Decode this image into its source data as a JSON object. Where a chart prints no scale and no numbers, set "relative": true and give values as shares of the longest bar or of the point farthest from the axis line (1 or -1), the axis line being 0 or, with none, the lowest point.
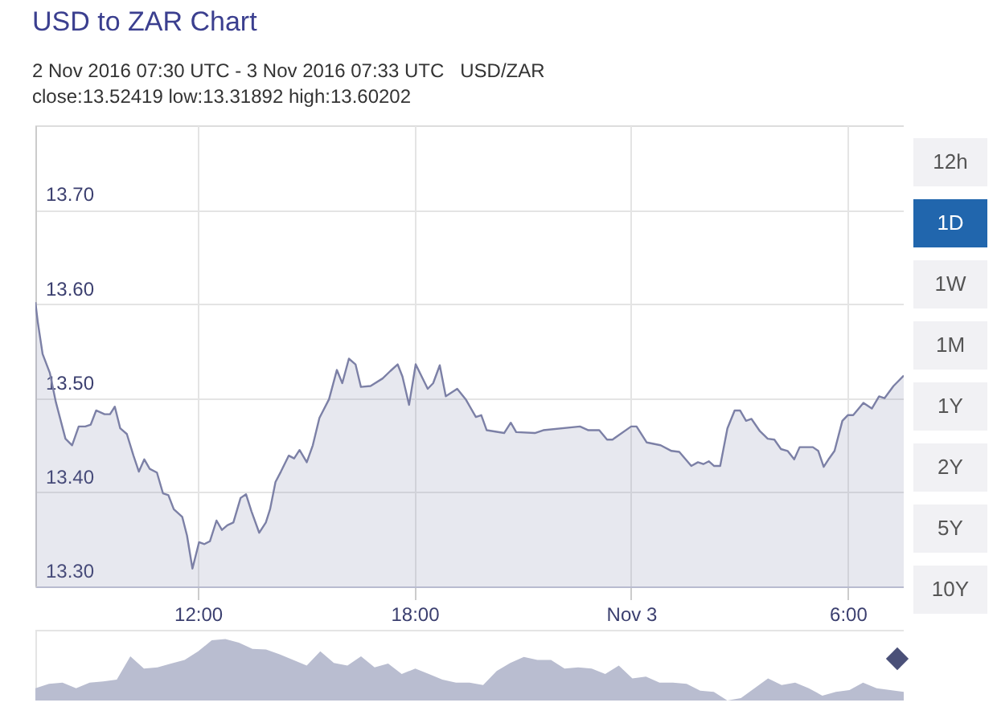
{
  "chart_data": [
    {
      "type": "area",
      "title": "USD to ZAR Chart",
      "subtitle": "2 Nov 2016 07:30 UTC - 3 Nov 2016 07:33 UTC   USD/ZAR close:13.52419 low:13.31892 high:13.60202",
      "annotations": [
        "12h",
        "1D",
        "1W",
        "1M",
        "1Y",
        "2Y",
        "5Y",
        "10Y"
      ],
      "x": [
        "2016-11-02T07:30",
        "2016-11-02T07:34",
        "2016-11-02T07:42",
        "2016-11-02T07:54",
        "2016-11-02T08:04",
        "2016-11-02T08:20",
        "2016-11-02T08:31",
        "2016-11-02T08:42",
        "2016-11-02T08:53",
        "2016-11-02T09:02",
        "2016-11-02T09:11",
        "2016-11-02T09:25",
        "2016-11-02T09:34",
        "2016-11-02T09:42",
        "2016-11-02T09:51",
        "2016-11-02T10:02",
        "2016-11-02T10:13",
        "2016-11-02T10:22",
        "2016-11-02T10:31",
        "2016-11-02T10:40",
        "2016-11-02T10:52",
        "2016-11-02T11:02",
        "2016-11-02T11:11",
        "2016-11-02T11:20",
        "2016-11-02T11:34",
        "2016-11-02T11:42",
        "2016-11-02T11:51",
        "2016-11-02T12:02",
        "2016-11-02T12:11",
        "2016-11-02T12:20",
        "2016-11-02T12:31",
        "2016-11-02T12:40",
        "2016-11-02T12:49",
        "2016-11-02T12:59",
        "2016-11-02T13:11",
        "2016-11-02T13:20",
        "2016-11-02T13:29",
        "2016-11-02T13:42",
        "2016-11-02T13:53",
        "2016-11-02T14:00",
        "2016-11-02T14:09",
        "2016-11-02T14:18",
        "2016-11-02T14:31",
        "2016-11-02T14:40",
        "2016-11-02T14:49",
        "2016-11-02T15:01",
        "2016-11-02T15:11",
        "2016-11-02T15:22",
        "2016-11-02T15:38",
        "2016-11-02T15:51",
        "2016-11-02T16:00",
        "2016-11-02T16:11",
        "2016-11-02T16:22",
        "2016-11-02T16:31",
        "2016-11-02T16:47",
        "2016-11-02T17:07",
        "2016-11-02T17:20",
        "2016-11-02T17:32",
        "2016-11-02T17:40",
        "2016-11-02T17:51",
        "2016-11-02T18:02",
        "2016-11-02T18:22",
        "2016-11-02T18:31",
        "2016-11-02T18:42",
        "2016-11-02T18:52",
        "2016-11-02T19:11",
        "2016-11-02T19:25",
        "2016-11-02T19:42",
        "2016-11-02T19:51",
        "2016-11-02T20:00",
        "2016-11-02T20:29",
        "2016-11-02T20:40",
        "2016-11-02T20:49",
        "2016-11-02T21:20",
        "2016-11-02T21:34",
        "2016-11-02T22:35",
        "2016-11-02T22:49",
        "2016-11-02T23:07",
        "2016-11-02T23:20",
        "2016-11-02T23:29",
        "2016-11-03T00:00",
        "2016-11-03T00:09",
        "2016-11-03T00:26",
        "2016-11-03T00:49",
        "2016-11-03T01:07",
        "2016-11-03T01:20",
        "2016-11-03T01:40",
        "2016-11-03T01:51",
        "2016-11-03T02:00",
        "2016-11-03T02:09",
        "2016-11-03T02:18",
        "2016-11-03T02:28",
        "2016-11-03T02:40",
        "2016-11-03T02:52",
        "2016-11-03T03:01",
        "2016-11-03T03:11",
        "2016-11-03T03:20",
        "2016-11-03T03:34",
        "2016-11-03T03:47",
        "2016-11-03T03:58",
        "2016-11-03T04:09",
        "2016-11-03T04:20",
        "2016-11-03T04:31",
        "2016-11-03T04:40",
        "2016-11-03T05:02",
        "2016-11-03T05:11",
        "2016-11-03T05:20",
        "2016-11-03T05:29",
        "2016-11-03T05:38",
        "2016-11-03T05:51",
        "2016-11-03T06:00",
        "2016-11-03T06:09",
        "2016-11-03T06:26",
        "2016-11-03T06:40",
        "2016-11-03T06:52",
        "2016-11-03T07:01",
        "2016-11-03T07:16",
        "2016-11-03T07:33"
      ],
      "values": [
        13.602,
        13.581,
        13.547,
        13.527,
        13.496,
        13.457,
        13.45,
        13.47,
        13.47,
        13.472,
        13.487,
        13.483,
        13.483,
        13.491,
        13.468,
        13.462,
        13.439,
        13.422,
        13.435,
        13.425,
        13.421,
        13.399,
        13.397,
        13.382,
        13.374,
        13.354,
        13.319,
        13.347,
        13.345,
        13.348,
        13.37,
        13.36,
        13.365,
        13.368,
        13.394,
        13.398,
        13.38,
        13.357,
        13.368,
        13.382,
        13.411,
        13.422,
        13.439,
        13.436,
        13.445,
        13.432,
        13.45,
        13.479,
        13.499,
        13.53,
        13.516,
        13.542,
        13.536,
        13.512,
        13.513,
        13.521,
        13.529,
        13.536,
        13.523,
        13.493,
        13.536,
        13.51,
        13.516,
        13.535,
        13.502,
        13.51,
        13.499,
        13.48,
        13.482,
        13.466,
        13.463,
        13.474,
        13.464,
        13.463,
        13.466,
        13.47,
        13.466,
        13.466,
        13.456,
        13.456,
        13.47,
        13.47,
        13.453,
        13.45,
        13.444,
        13.443,
        13.428,
        13.432,
        13.43,
        13.433,
        13.428,
        13.428,
        13.468,
        13.487,
        13.487,
        13.476,
        13.478,
        13.465,
        13.457,
        13.456,
        13.446,
        13.444,
        13.435,
        13.448,
        13.448,
        13.444,
        13.427,
        13.436,
        13.444,
        13.476,
        13.482,
        13.482,
        13.495,
        13.489,
        13.502,
        13.5,
        13.513,
        13.524
      ],
      "color": "#7c80a6",
      "xlim": [
        "2016-11-02T07:30",
        "2016-11-03T07:33"
      ],
      "xticks": [
        {
          "value": "2016-11-02T12:00",
          "label": "12:00"
        },
        {
          "value": "2016-11-02T18:00",
          "label": "18:00"
        },
        {
          "value": "2016-11-03T00:00",
          "label": "Nov 3"
        },
        {
          "value": "2016-11-03T06:00",
          "label": "6:00"
        }
      ],
      "ylim": [
        13.3,
        13.79
      ],
      "yticks": [
        {
          "value": 13.3,
          "label": "13.30"
        },
        {
          "value": 13.4,
          "label": "13.40"
        },
        {
          "value": 13.5,
          "label": "13.50"
        },
        {
          "value": 13.6,
          "label": "13.60"
        },
        {
          "value": 13.7,
          "label": "13.70"
        }
      ],
      "grid": true
    },
    {
      "type": "area",
      "relative": true,
      "color": "#b9bdd0",
      "categories": [
        null,
        null,
        null,
        null,
        null,
        null,
        null,
        null,
        null,
        null,
        null,
        null,
        null,
        null,
        null,
        null,
        null,
        null,
        null,
        null,
        null,
        null,
        null,
        null,
        null,
        null,
        null,
        null,
        null,
        null,
        null,
        null,
        null,
        null,
        null,
        null,
        null,
        null,
        null,
        null,
        null,
        null,
        null,
        null,
        null,
        null,
        null,
        null,
        null,
        null,
        null,
        null,
        null,
        null,
        null,
        null,
        null,
        null,
        null,
        null,
        null,
        null,
        null,
        null,
        null
      ],
      "values": [
        0.2,
        0.27,
        0.29,
        0.2,
        0.29,
        0.31,
        0.34,
        0.72,
        0.52,
        0.54,
        0.6,
        0.66,
        0.8,
        0.98,
        1,
        0.94,
        0.84,
        0.83,
        0.75,
        0.66,
        0.57,
        0.8,
        0.61,
        0.57,
        0.72,
        0.54,
        0.6,
        0.43,
        0.52,
        0.43,
        0.34,
        0.29,
        0.29,
        0.25,
        0.48,
        0.61,
        0.71,
        0.66,
        0.66,
        0.52,
        0.54,
        0.52,
        0.43,
        0.57,
        0.36,
        0.39,
        0.29,
        0.29,
        0.27,
        0.16,
        0.14,
        0,
        0.04,
        0.2,
        0.36,
        0.25,
        0.29,
        0.2,
        0.08,
        0.14,
        0.17,
        0.29,
        0.2,
        0.17,
        0.14
      ]
    }
  ]
}
